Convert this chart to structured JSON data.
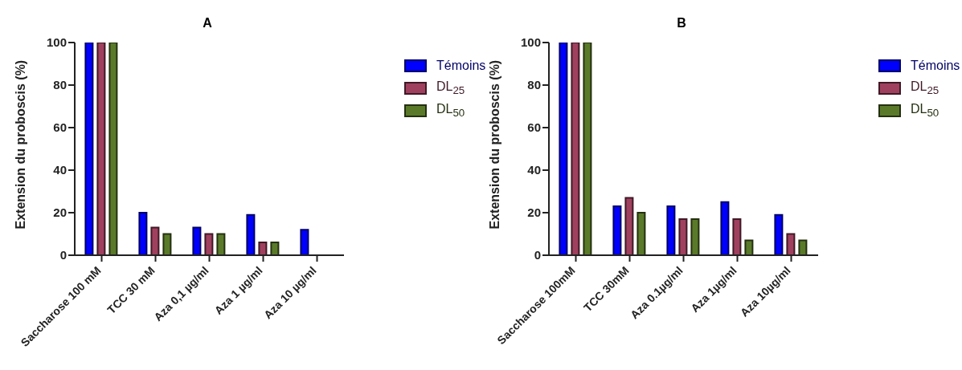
{
  "chart_data": [
    {
      "type": "bar",
      "title": "A",
      "ylabel": "Extension du proboscis (%)",
      "categories": [
        "Saccharose 100 mM",
        "TCC 30 mM",
        "Aza 0,1 µg/ml",
        "Aza 1 µg/ml",
        "Aza 10 µg/ml"
      ],
      "series": [
        {
          "name": "Témoins",
          "color": "#0000ff",
          "values": [
            100,
            20,
            13,
            19,
            12
          ]
        },
        {
          "name": "DL$_{25}$",
          "color": "#a0405f",
          "values": [
            100,
            13,
            10,
            6,
            0
          ]
        },
        {
          "name": "DL$_{50}$",
          "color": "#5a7a2a",
          "values": [
            100,
            10,
            10,
            6,
            0
          ]
        }
      ],
      "ylim": [
        0,
        100
      ],
      "yticks": [
        0,
        20,
        40,
        60,
        80,
        100
      ],
      "grid": false,
      "legend": "right"
    },
    {
      "type": "bar",
      "title": "B",
      "ylabel": "Extension du proboscis (%)",
      "categories": [
        "Saccharose 100mM",
        "TCC 30mM",
        "Aza 0.1µg/ml",
        "Aza 1µg/ml",
        "Aza 10µg/ml"
      ],
      "series": [
        {
          "name": "Témoins",
          "color": "#0000ff",
          "values": [
            100,
            23,
            23,
            25,
            19
          ]
        },
        {
          "name": "DL$_{25}$",
          "color": "#a0405f",
          "values": [
            100,
            27,
            17,
            17,
            10
          ]
        },
        {
          "name": "DL$_{50}$",
          "color": "#5a7a2a",
          "values": [
            100,
            20,
            17,
            7,
            7
          ]
        }
      ],
      "ylim": [
        0,
        100
      ],
      "yticks": [
        0,
        20,
        40,
        60,
        80,
        100
      ],
      "grid": false,
      "legend": "right"
    }
  ]
}
